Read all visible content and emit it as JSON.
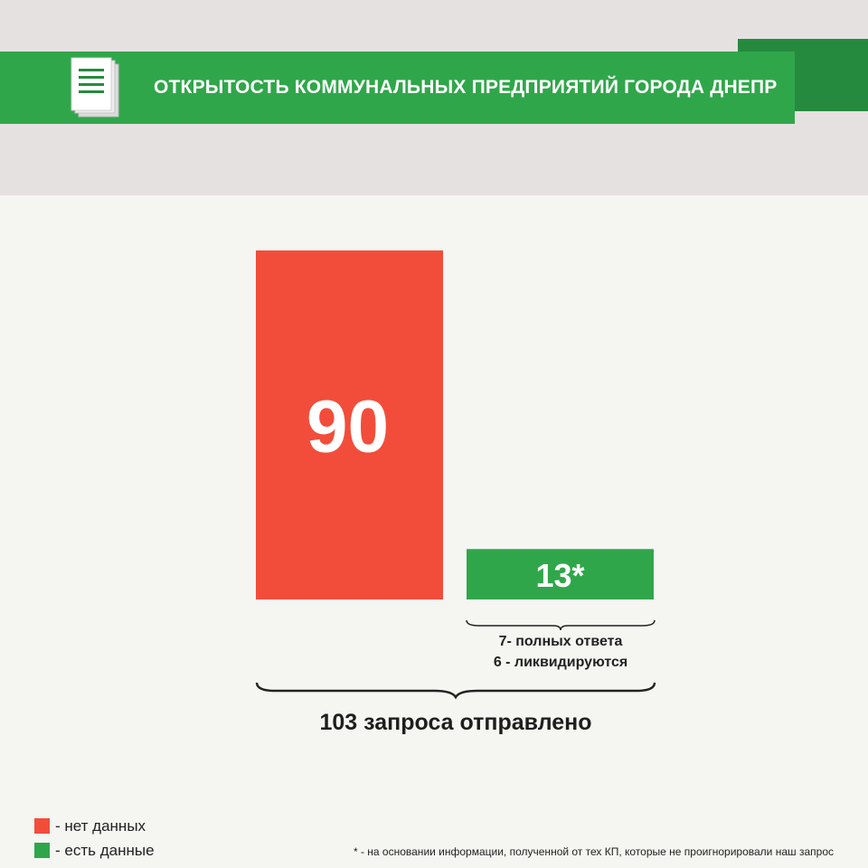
{
  "header": {
    "title": "ОТКРЫТОСТЬ КОММУНАЛЬНЫХ ПРЕДПРИЯТИЙ ГОРОДА ДНЕПР",
    "icon": "document-icon"
  },
  "colors": {
    "no_data": "#f24d3a",
    "has_data": "#30a64a",
    "ribbon": "#30a64a",
    "ribbon_dark": "#268a3e",
    "header_bg": "#e6e1e1",
    "page_bg": "#f5f5f2"
  },
  "chart_data": {
    "type": "bar",
    "categories": [
      "нет данных",
      "есть данные"
    ],
    "values": [
      90,
      13
    ],
    "data_labels": [
      "90",
      "13*"
    ],
    "ylim": [
      0,
      90
    ],
    "grid": false,
    "legend_placement": "bottom-left"
  },
  "annotations": {
    "sub_brace_line1": "7- полных ответа",
    "sub_brace_line2": "6 - ликвидируются",
    "total": "103 запроса отправлено"
  },
  "legend": [
    {
      "label": "- нет данных",
      "color": "#f24d3a"
    },
    {
      "label": "- есть данные",
      "color": "#30a64a"
    }
  ],
  "footnote": "* - на основании информации, полученной от тех КП, которые не проигнорировали наш запрос"
}
